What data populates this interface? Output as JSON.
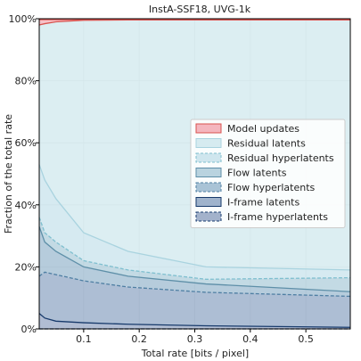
{
  "chart_data": {
    "type": "area",
    "title": "InstA-SSF18, UVG-1k",
    "xlabel": "Total rate [bits / pixel]",
    "ylabel": "Fraction of the total rate",
    "xlim": [
      0.02,
      0.58
    ],
    "ylim": [
      0,
      100
    ],
    "xticks": [
      0.1,
      0.2,
      0.3,
      0.4,
      0.5
    ],
    "xtick_labels": [
      "0.1",
      "0.2",
      "0.3",
      "0.4",
      "0.5"
    ],
    "yticks": [
      0,
      20,
      40,
      60,
      80,
      100
    ],
    "ytick_labels": [
      "0%",
      "20%",
      "40%",
      "60%",
      "80%",
      "100%"
    ],
    "grid": true,
    "legend_position": "center-right",
    "x": [
      0.02,
      0.03,
      0.05,
      0.1,
      0.18,
      0.32,
      0.58
    ],
    "series": [
      {
        "name": "Model updates",
        "top": [
          100,
          100,
          100,
          100,
          100,
          100,
          100
        ],
        "bottom": [
          98.0,
          98.4,
          99.0,
          99.5,
          99.6,
          99.6,
          99.6
        ],
        "fill": "#f4b6be",
        "line": "#d9534f",
        "dashed": false
      },
      {
        "name": "Residual latents",
        "top": [
          98.0,
          98.4,
          99.0,
          99.5,
          99.6,
          99.6,
          99.6
        ],
        "bottom": [
          53,
          48,
          42,
          31,
          25,
          20,
          19
        ],
        "fill": "#d6ebf0",
        "line": "#a9d3df",
        "dashed": false
      },
      {
        "name": "Residual hyperlatents",
        "top": [
          53,
          48,
          42,
          31,
          25,
          20,
          19
        ],
        "bottom": [
          36,
          31,
          28,
          22,
          19,
          16,
          16.5
        ],
        "fill": "#cfe6ee",
        "line": "#7fbfcf",
        "dashed": true
      },
      {
        "name": "Flow latents",
        "top": [
          36,
          31,
          28,
          22,
          19,
          16,
          16.5
        ],
        "bottom": [
          33,
          28,
          25,
          20,
          17,
          14.5,
          12
        ],
        "fill": "#b9d3df",
        "line": "#5e8fa8",
        "dashed": false
      },
      {
        "name": "Flow hyperlatents",
        "top": [
          33,
          28,
          25,
          20,
          17,
          14.5,
          12
        ],
        "bottom": [
          17,
          18.3,
          17.5,
          15.5,
          13.5,
          11.8,
          10.5
        ],
        "fill": "#a9c3d6",
        "line": "#4f7fa3",
        "dashed": true
      },
      {
        "name": "I-frame latents",
        "top": [
          17,
          18.3,
          17.5,
          15.5,
          13.5,
          11.8,
          10.5
        ],
        "bottom": [
          5,
          3.5,
          2.5,
          2,
          1.5,
          1,
          0.5
        ],
        "fill": "#9fb3cc",
        "line": "#173a6b",
        "dashed": false
      },
      {
        "name": "I-frame hyperlatents",
        "top": [
          5,
          3.5,
          2.5,
          2,
          1.5,
          1,
          0.5
        ],
        "bottom": [
          0,
          0,
          0,
          0,
          0,
          0,
          0
        ],
        "fill": "#a3b2cb",
        "line": "#1a3d70",
        "dashed": true
      }
    ]
  }
}
